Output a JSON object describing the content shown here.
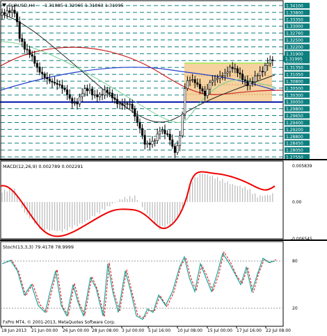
{
  "symbol": "EURUSD,H4",
  "ohlc": "1.31885 1.32065 1.31863 1.31995",
  "macd": {
    "label": "MACD(12,26,9) 0.002789 0.002291",
    "top_label": "0.005839",
    "zero_label": "0.00",
    "bottom_label": "-0.006545"
  },
  "stoch": {
    "label": "Stoch(13,3,3) 79.4178 78.9999",
    "level_80": "80",
    "level_20": "20"
  },
  "copyright": "FxPro MT4, © 2001-2013, MetaQuotes Software Corp.",
  "price_labels": [
    "1.34100",
    "1.33800",
    "1.33350",
    "1.33000",
    "1.32760",
    "1.32500",
    "1.32200",
    "1.31900",
    "1.31600",
    "1.31350",
    "1.31050",
    "1.30800",
    "1.30500",
    "1.30300",
    "1.30050",
    "1.29800",
    "1.29650",
    "1.29400",
    "1.29200",
    "1.28800",
    "1.28450",
    "1.28050",
    "1.27550"
  ],
  "current_price": "1.31995",
  "dates": [
    "18 Jun 2013",
    "21 Jun 00:00",
    "26 Jun 00:00",
    "28 Jun 08:00",
    "3 Jul 00:00",
    "5 Jul 16:00",
    "10 Jul 08:00",
    "15 Jul 00:00",
    "17 Jul 16:00",
    "22 Jul 08:00"
  ],
  "colors": {
    "frame": "#000000",
    "grid": "#0d7f7f",
    "candle": "#000000",
    "ma_red": "#cc2222",
    "ma_blue": "#1f3fcf",
    "ma_black": "#222222",
    "ma_green": "#6fd08f",
    "fib_fill": "#f5d2a0",
    "fib_top": "#b5e86a",
    "hline_blue": "#0a1fb0",
    "macd_hist": "#b8b8b8",
    "macd_signal": "#ee0000",
    "stoch_main": "#1aa59a",
    "stoch_signal": "#ee0000",
    "price_tag": "#0d7f7f"
  }
}
